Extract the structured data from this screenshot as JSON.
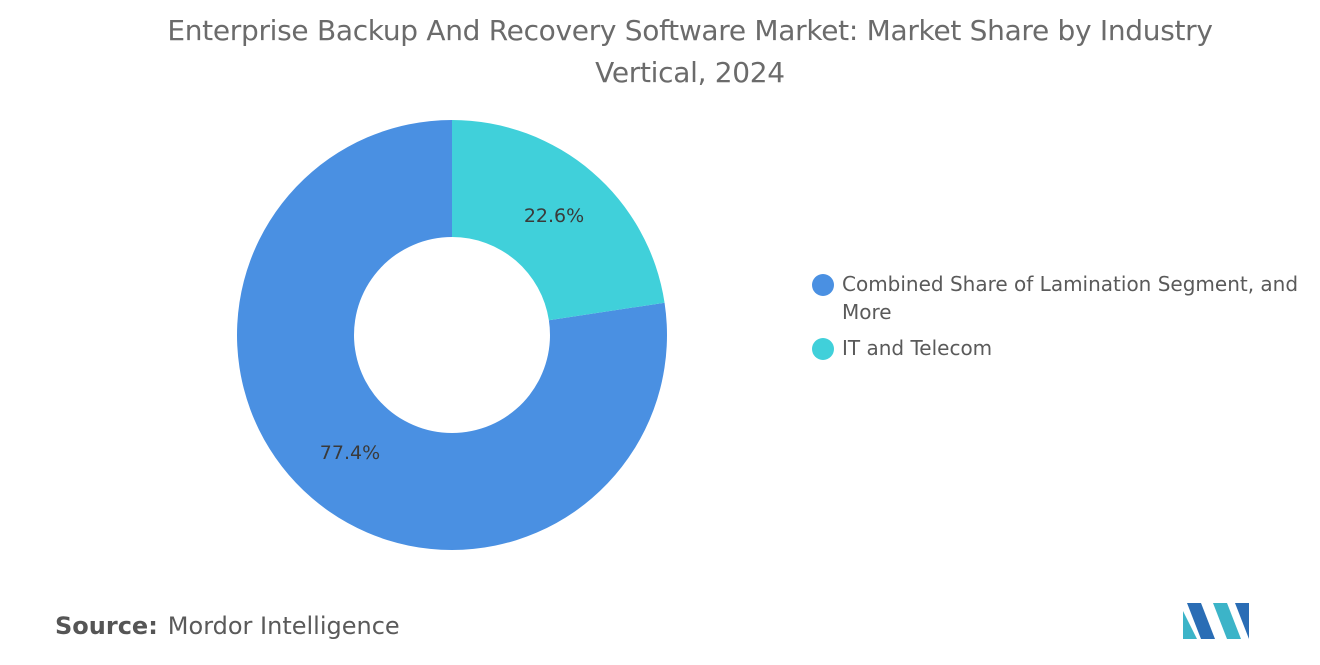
{
  "chart_data": {
    "type": "donut",
    "title": "Enterprise Backup And Recovery Software Market: Market Share by Industry Vertical, 2024",
    "categories": [
      "Combined Share of Lamination Segment, and More",
      "IT and Telecom"
    ],
    "values": [
      77.4,
      22.6
    ],
    "value_labels": [
      "77.4%",
      "22.6%"
    ],
    "colors": [
      "#4a90e2",
      "#40d0da"
    ],
    "legend": "right"
  },
  "footer": {
    "source_label": "Source:",
    "source": "Mordor Intelligence"
  }
}
